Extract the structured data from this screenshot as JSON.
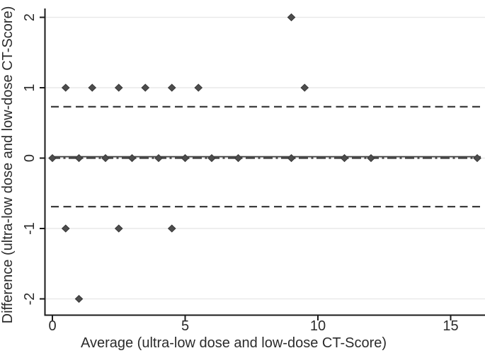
{
  "chart_data": {
    "type": "scatter",
    "title": "",
    "xlabel": "Average (ultra-low dose and low-dose CT-Score)",
    "ylabel": "Difference (ultra-low dose and low-dose CT-Score)",
    "xlim": [
      0,
      16.3
    ],
    "ylim": [
      -2.23,
      2.13
    ],
    "xticks": [
      "0",
      "5",
      "10",
      "15"
    ],
    "xtick_values": [
      0,
      5,
      10,
      15
    ],
    "yticks": [
      "-2",
      "-1",
      "0",
      "1",
      "2"
    ],
    "ytick_values": [
      -2,
      -1,
      0,
      1,
      2
    ],
    "grid": "horizontal-light",
    "legend": "none",
    "series": [
      {
        "name": "score-differences",
        "marker": "diamond",
        "points": [
          [
            0,
            0
          ],
          [
            0.5,
            1
          ],
          [
            0.5,
            -1
          ],
          [
            1,
            0
          ],
          [
            1,
            -2
          ],
          [
            1.5,
            1
          ],
          [
            2,
            0
          ],
          [
            2.5,
            1
          ],
          [
            2.5,
            -1
          ],
          [
            3,
            0
          ],
          [
            3.5,
            1
          ],
          [
            4,
            0
          ],
          [
            4.5,
            1
          ],
          [
            4.5,
            -1
          ],
          [
            5,
            0
          ],
          [
            5.5,
            1
          ],
          [
            6,
            0
          ],
          [
            7,
            0
          ],
          [
            9,
            0
          ],
          [
            9,
            2
          ],
          [
            9.5,
            1
          ],
          [
            11,
            0
          ],
          [
            12,
            0
          ],
          [
            16,
            0
          ]
        ]
      }
    ],
    "reference_lines": [
      {
        "name": "upper-limit-of-agreement-line",
        "y": 0.73,
        "style": "dashed"
      },
      {
        "name": "mean-difference-line",
        "y": 0.02,
        "style": "solid"
      },
      {
        "name": "zero-reference-line",
        "y": 0.0,
        "style": "dashdot"
      },
      {
        "name": "lower-limit-of-agreement-line",
        "y": -0.69,
        "style": "dashed"
      }
    ]
  },
  "colors": {
    "background": "#ffffff",
    "axis": "#1a1a1a",
    "grid": "#e9e9e9",
    "text": "#2b2b2b",
    "marker_fill": "#4d4d4d",
    "marker_stroke": "#383838",
    "ref_line": "#3d3d3d"
  }
}
